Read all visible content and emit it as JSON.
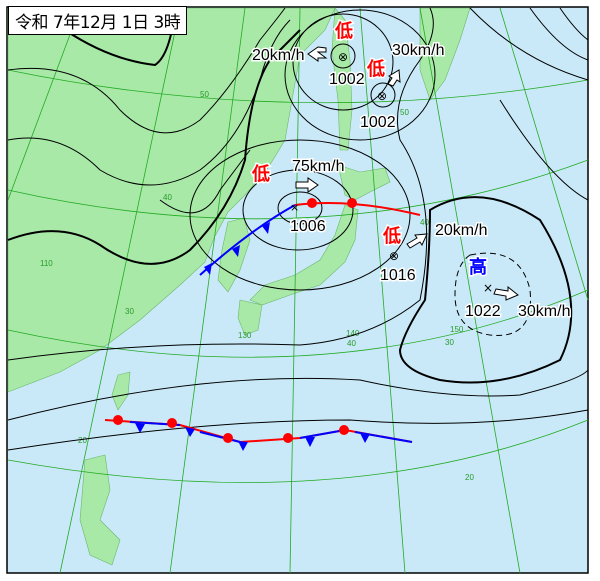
{
  "title": "令和 7年12月 1日 3時",
  "colors": {
    "sea": "#c9e9f8",
    "land": "#a8e9a8",
    "low": "#ff0000",
    "high": "#0000ff",
    "grid": "#22aa22",
    "warm_front": "#ff0000",
    "cold_front": "#0000ff"
  },
  "lows": [
    {
      "symbol": "低",
      "pressure": "1002",
      "movement": "20km/h"
    },
    {
      "symbol": "低",
      "pressure": "1002",
      "movement": "30km/h"
    },
    {
      "symbol": "低",
      "pressure": "1006",
      "movement": "75km/h"
    },
    {
      "symbol": "低",
      "pressure": "1016",
      "movement": "20km/h"
    }
  ],
  "high": {
    "symbol": "高",
    "pressure": "1022",
    "movement": "30km/h"
  },
  "grid_labels": [
    "50",
    "50",
    "40",
    "40",
    "40",
    "30",
    "30",
    "20",
    "20",
    "110",
    "130",
    "140",
    "150"
  ]
}
